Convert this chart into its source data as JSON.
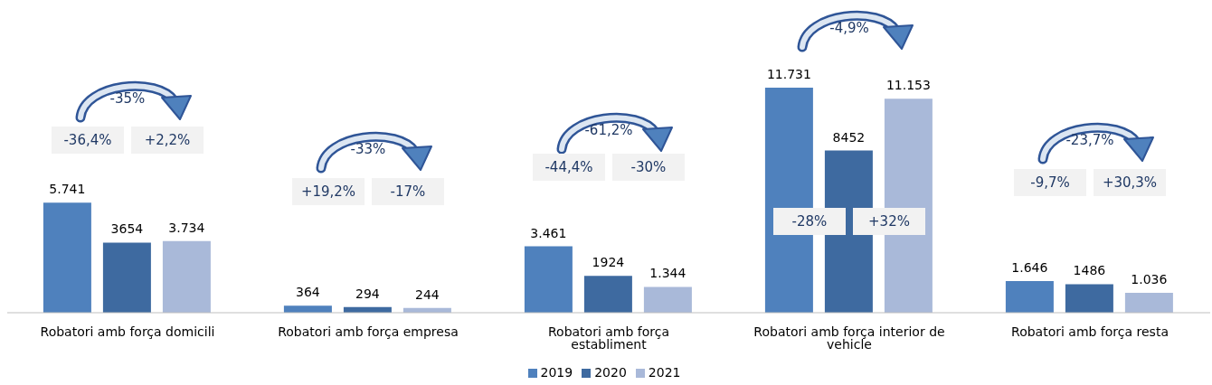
{
  "chart_data": {
    "type": "bar",
    "categories": [
      "Robatori amb força domicili",
      "Robatori amb força empresa",
      "Robatori amb força establiment",
      "Robatori amb força interior de vehicle",
      "Robatori amb força resta"
    ],
    "series": [
      {
        "name": "2019",
        "color": "#4f81bd",
        "values": [
          5741,
          364,
          3461,
          11731,
          1646
        ],
        "value_labels": [
          "5.741",
          "364",
          "3.461",
          "11.731",
          "1.646"
        ]
      },
      {
        "name": "2020",
        "color": "#3e6aa0",
        "values": [
          3654,
          294,
          1924,
          8452,
          1486
        ],
        "value_labels": [
          "3654",
          "294",
          "1924",
          "8452",
          "1486"
        ]
      },
      {
        "name": "2021",
        "color": "#a9b9d9",
        "values": [
          3734,
          244,
          1344,
          11153,
          1036
        ],
        "value_labels": [
          "3.734",
          "244",
          "1.344",
          "11.153",
          "1.036"
        ]
      }
    ],
    "legend": "bottom",
    "annotations": [
      "-35%",
      "-36,4%",
      "+2,2%",
      "-33%",
      "+19,2%",
      "-17%",
      "-61,2%",
      "-44,4%",
      "-30%",
      "-4,9%",
      "-28%",
      "+32%",
      "-23,7%",
      "-9,7%",
      "+30,3%"
    ]
  }
}
